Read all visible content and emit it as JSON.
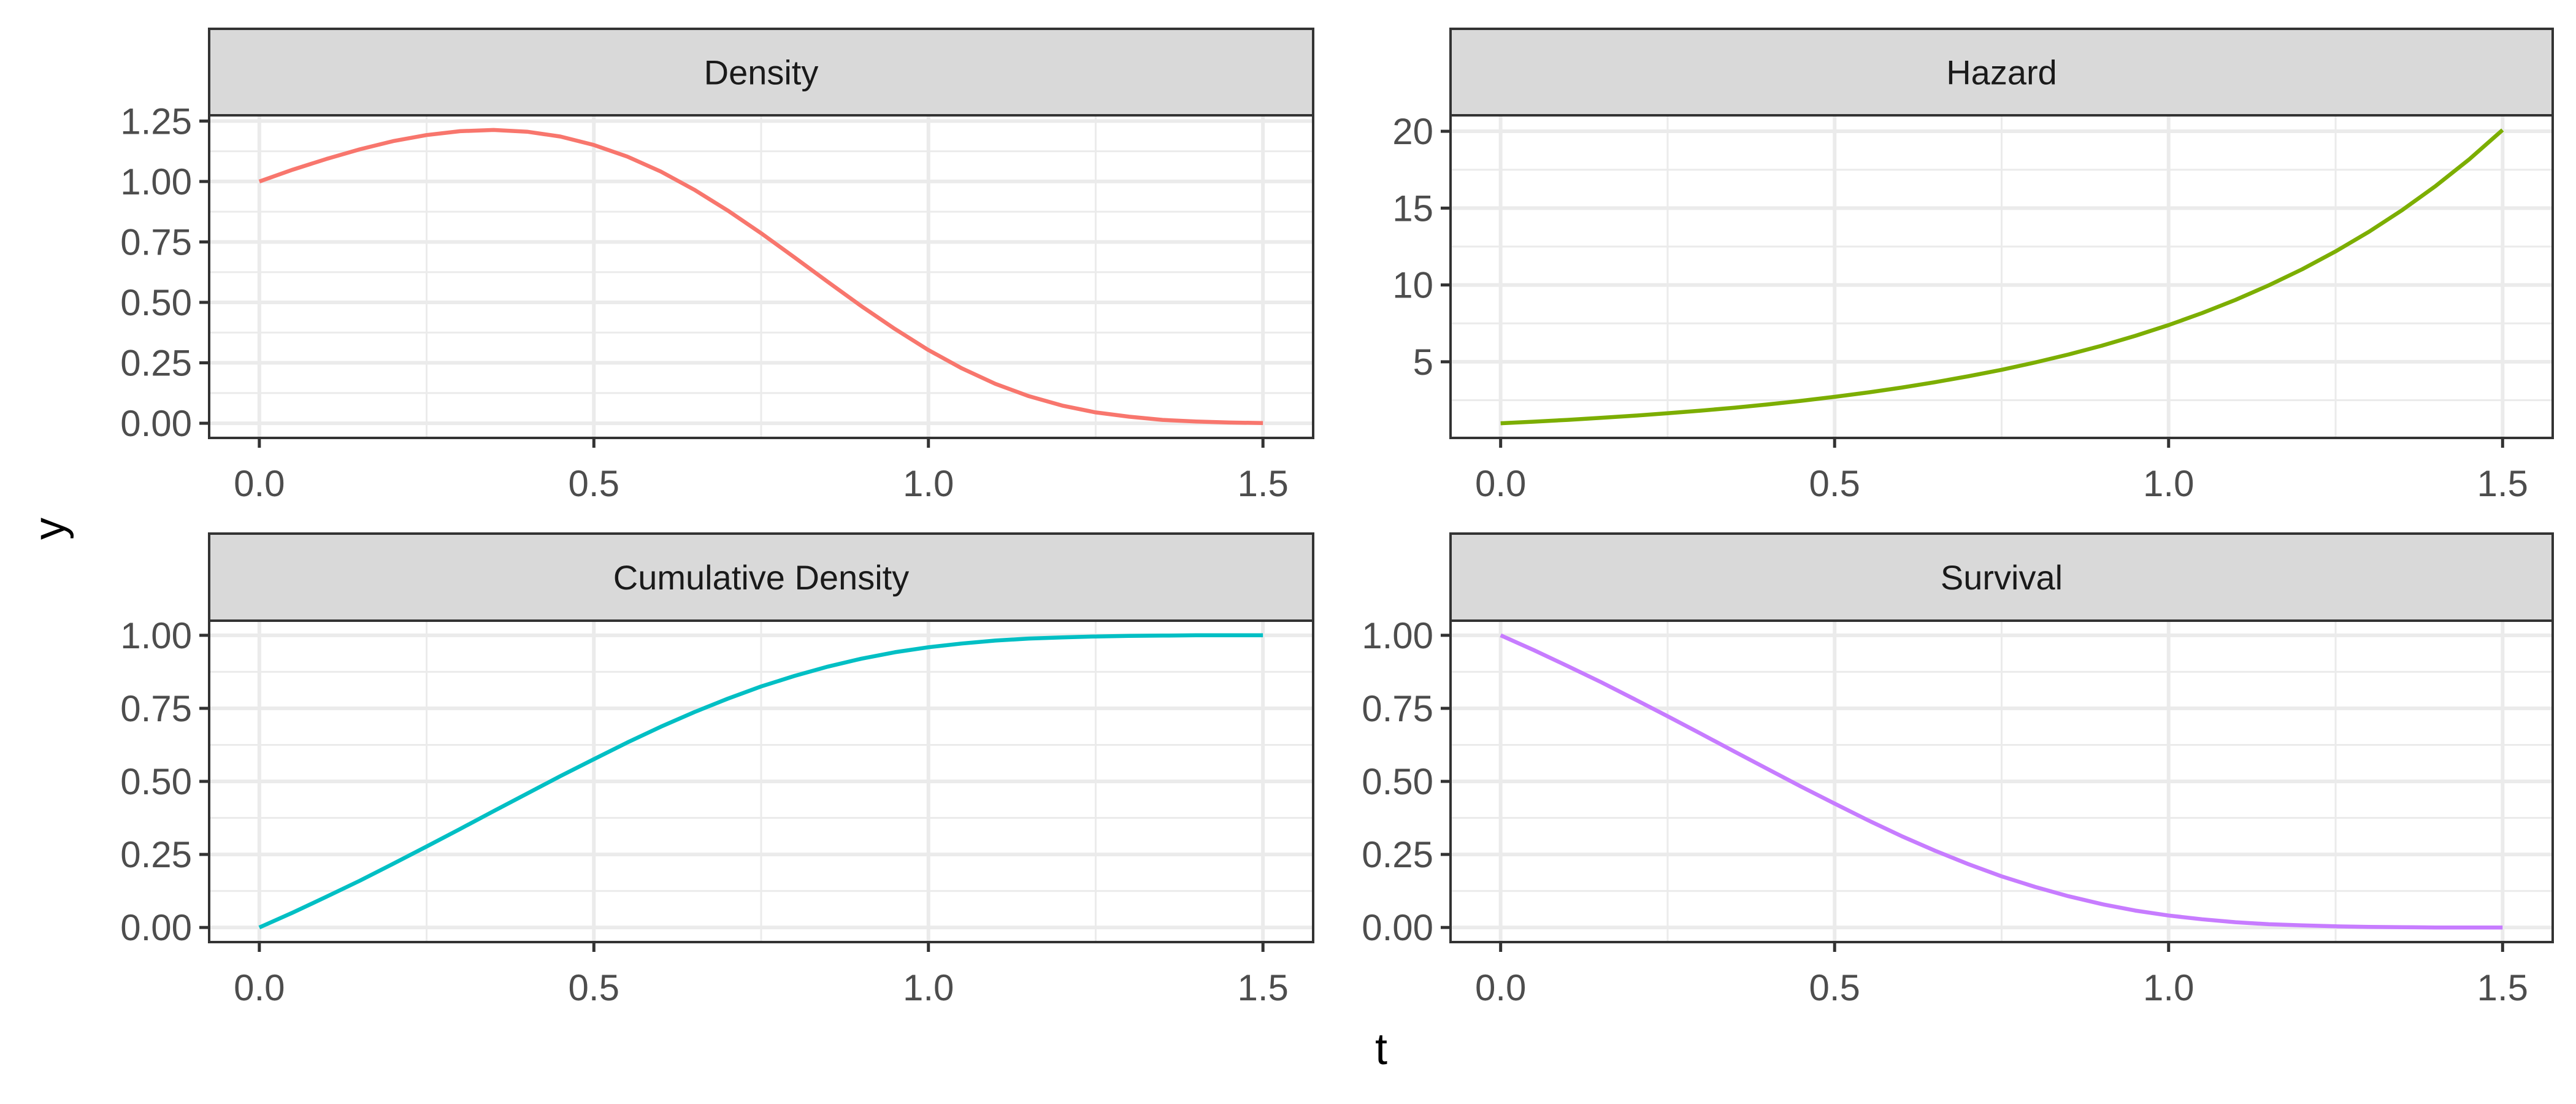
{
  "chart_data": {
    "type": "line",
    "layout": "facet-grid-2x2",
    "xlabel": "t",
    "ylabel": "y",
    "grid": true,
    "x": [
      0,
      0.05,
      0.1,
      0.15,
      0.2,
      0.25,
      0.3,
      0.35,
      0.4,
      0.45,
      0.5,
      0.55,
      0.6,
      0.65,
      0.7,
      0.75,
      0.8,
      0.85,
      0.9,
      0.95,
      1.0,
      1.05,
      1.1,
      1.15,
      1.2,
      1.25,
      1.3,
      1.35,
      1.4,
      1.45,
      1.5
    ],
    "xlim": [
      0,
      1.5
    ],
    "x_ticks": [
      "0.0",
      "0.5",
      "1.0",
      "1.5"
    ],
    "panels": [
      {
        "title": "Density",
        "color": "#F8766D",
        "ylim": [
          0,
          1.2131
        ],
        "y_ticks": [
          "0.00",
          "0.25",
          "0.50",
          "0.75",
          "1.00",
          "1.25"
        ],
        "values": [
          1,
          1.049,
          1.093,
          1.133,
          1.167,
          1.192,
          1.208,
          1.213,
          1.206,
          1.186,
          1.151,
          1.103,
          1.041,
          0.966,
          0.88,
          0.786,
          0.686,
          0.584,
          0.484,
          0.39,
          0.303,
          0.227,
          0.163,
          0.112,
          0.073,
          0.045,
          0.027,
          0.014,
          0.007,
          0.003,
          0.001
        ]
      },
      {
        "title": "Hazard",
        "color": "#7CAE00",
        "ylim": [
          1,
          20.0855
        ],
        "y_ticks": [
          "5",
          "10",
          "15",
          "20"
        ],
        "values": [
          1,
          1.105,
          1.221,
          1.35,
          1.492,
          1.649,
          1.822,
          2.014,
          2.226,
          2.46,
          2.718,
          3.004,
          3.32,
          3.669,
          4.055,
          4.482,
          4.953,
          5.474,
          6.05,
          6.686,
          7.389,
          8.166,
          9.025,
          9.974,
          11.023,
          12.182,
          13.464,
          14.88,
          16.445,
          18.174,
          20.086
        ]
      },
      {
        "title": "Cumulative Density",
        "color": "#00BFC4",
        "ylim": [
          0,
          1
        ],
        "y_ticks": [
          "0.00",
          "0.25",
          "0.50",
          "0.75",
          "1.00"
        ],
        "values": [
          0,
          0.051,
          0.105,
          0.16,
          0.218,
          0.277,
          0.337,
          0.398,
          0.458,
          0.518,
          0.576,
          0.633,
          0.687,
          0.737,
          0.783,
          0.825,
          0.861,
          0.893,
          0.92,
          0.942,
          0.959,
          0.972,
          0.982,
          0.989,
          0.993,
          0.996,
          0.998,
          0.999,
          1.0,
          1.0,
          1.0
        ]
      },
      {
        "title": "Survival",
        "color": "#C77CFF",
        "ylim": [
          0,
          1
        ],
        "y_ticks": [
          "0.00",
          "0.25",
          "0.50",
          "0.75",
          "1.00"
        ],
        "values": [
          1,
          0.949,
          0.895,
          0.84,
          0.782,
          0.723,
          0.663,
          0.602,
          0.542,
          0.482,
          0.424,
          0.367,
          0.313,
          0.263,
          0.217,
          0.175,
          0.139,
          0.107,
          0.08,
          0.058,
          0.041,
          0.028,
          0.018,
          0.011,
          0.007,
          0.004,
          0.002,
          0.001,
          0.0,
          0.0,
          0.0
        ]
      }
    ]
  }
}
